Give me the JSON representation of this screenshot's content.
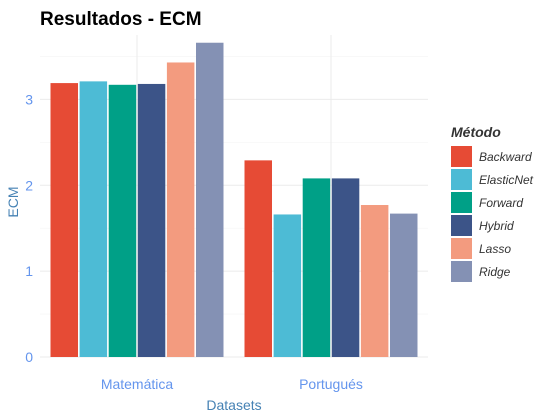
{
  "chart_data": {
    "type": "bar",
    "title": "Resultados - ECM",
    "xlabel": "Datasets",
    "ylabel": "ECM",
    "categories": [
      "Matemática",
      "Portugués"
    ],
    "yticks": [
      "0",
      "1",
      "2",
      "3"
    ],
    "ylim": [
      0,
      3.75
    ],
    "grid": true,
    "legend": {
      "title": "Método",
      "position": "right",
      "items": [
        "Backward",
        "ElasticNet",
        "Forward",
        "Hybrid",
        "Lasso",
        "Ridge"
      ]
    },
    "series": [
      {
        "name": "Backward",
        "color": "#E64B35",
        "values": [
          3.19,
          2.29
        ]
      },
      {
        "name": "ElasticNet",
        "color": "#4DBBD5",
        "values": [
          3.21,
          1.66
        ]
      },
      {
        "name": "Forward",
        "color": "#00A087",
        "values": [
          3.17,
          2.08
        ]
      },
      {
        "name": "Hybrid",
        "color": "#3C5488",
        "values": [
          3.18,
          2.08
        ]
      },
      {
        "name": "Lasso",
        "color": "#F39B7F",
        "values": [
          3.43,
          1.77
        ]
      },
      {
        "name": "Ridge",
        "color": "#8491B4",
        "values": [
          3.66,
          1.67
        ]
      }
    ],
    "colors": {
      "axis_text": "#6495ED",
      "axis_title": "#4682B4",
      "grid_major": "#EBEBEB",
      "grid_minor": "#F5F5F5"
    }
  }
}
